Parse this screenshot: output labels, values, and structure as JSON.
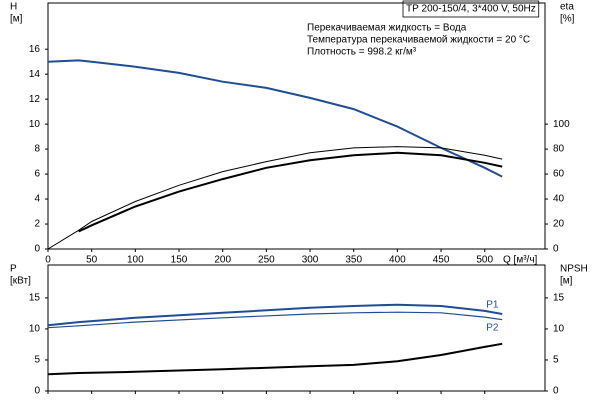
{
  "chart_data": [
    {
      "type": "line",
      "xlabel": "Q [м³/ч]",
      "ylabel": [
        "H",
        "[м]"
      ],
      "y2label": [
        "eta",
        "[%]"
      ],
      "annotations": {
        "model": "ТР 200-150/4, 3*400 V, 50Hz",
        "lines": [
          "Перекачиваемая жидкость = Вода",
          "Температура перекачиваемой жидкости = 20 °C",
          "Плотность = 998.2 кг/м³"
        ]
      },
      "x": [
        0,
        35,
        50,
        100,
        150,
        200,
        250,
        300,
        350,
        400,
        450,
        500,
        520
      ],
      "xlim": [
        0,
        569
      ],
      "xticks": [
        0,
        50,
        100,
        150,
        200,
        250,
        300,
        350,
        400,
        450,
        500
      ],
      "ylim": [
        0,
        19.7
      ],
      "yticks": [
        0,
        2,
        4,
        6,
        8,
        10,
        12,
        14,
        16
      ],
      "y2lim": [
        0,
        197
      ],
      "y2ticks": [
        0,
        20,
        40,
        60,
        80,
        100
      ],
      "series": [
        {
          "color": "#1f4e96",
          "linewidth": 2,
          "values": [
            15.0,
            15.1,
            15.0,
            14.6,
            14.1,
            13.4,
            12.9,
            12.1,
            11.2,
            9.8,
            8.1,
            6.5,
            5.8
          ]
        },
        {
          "color": "#000000",
          "linewidth": 1,
          "axis": "y2",
          "values": [
            0,
            15,
            22,
            38,
            51,
            62,
            70,
            77,
            81,
            82,
            81,
            75,
            72
          ]
        },
        {
          "color": "#000000",
          "linewidth": 2,
          "axis": "y2",
          "values": [
            null,
            14,
            19,
            34,
            46,
            56,
            65,
            71,
            75,
            77,
            75,
            69,
            66
          ]
        }
      ]
    },
    {
      "type": "line",
      "ylabel": [
        "P",
        "[кВт]"
      ],
      "y2label": [
        "NPSH",
        "[м]"
      ],
      "x": [
        0,
        35,
        100,
        200,
        300,
        350,
        400,
        450,
        500,
        520
      ],
      "xlim": [
        0,
        569
      ],
      "xticks": [
        0,
        50,
        100,
        150,
        200,
        250,
        300,
        350,
        400,
        450,
        500
      ],
      "ylim": [
        0,
        20.3
      ],
      "yticks": [
        0,
        5,
        10,
        15
      ],
      "y2lim": [
        0,
        20.3
      ],
      "y2ticks": [
        0,
        5,
        10,
        15
      ],
      "series": [
        {
          "name": "P1",
          "color": "#1f4e96",
          "linewidth": 2,
          "values": [
            10.6,
            11.1,
            11.8,
            12.6,
            13.4,
            13.7,
            13.9,
            13.7,
            12.9,
            12.4
          ]
        },
        {
          "name": "P2",
          "color": "#1f4e96",
          "linewidth": 1.2,
          "values": [
            10.2,
            10.5,
            11.1,
            11.8,
            12.4,
            12.6,
            12.7,
            12.6,
            11.9,
            11.5
          ]
        },
        {
          "color": "#000000",
          "linewidth": 2,
          "axis": "y2",
          "values": [
            2.7,
            2.9,
            3.1,
            3.5,
            4.0,
            4.2,
            4.8,
            5.8,
            7.1,
            7.6
          ]
        }
      ]
    }
  ]
}
